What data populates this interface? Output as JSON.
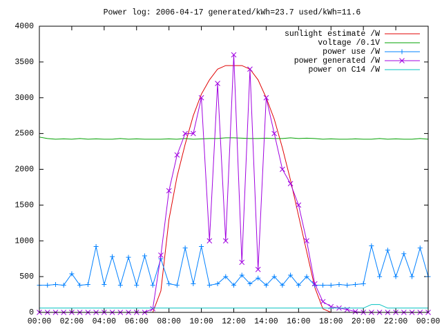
{
  "chart_data": {
    "type": "line",
    "title": "Power log: 2006-04-17 generated/kWh=23.7 used/kWh=11.6",
    "x": [
      0,
      0.5,
      1,
      1.5,
      2,
      2.5,
      3,
      3.5,
      4,
      4.5,
      5,
      5.5,
      6,
      6.5,
      7,
      7.5,
      8,
      8.5,
      9,
      9.5,
      10,
      10.5,
      11,
      11.5,
      12,
      12.5,
      13,
      13.5,
      14,
      14.5,
      15,
      15.5,
      16,
      16.5,
      17,
      17.5,
      18,
      18.5,
      19,
      19.5,
      20,
      20.5,
      21,
      21.5,
      22,
      22.5,
      23,
      23.5,
      24
    ],
    "xlim": [
      0,
      24
    ],
    "xticks": [
      {
        "value": 0,
        "label": "00:00"
      },
      {
        "value": 2,
        "label": "02:00"
      },
      {
        "value": 4,
        "label": "04:00"
      },
      {
        "value": 6,
        "label": "06:00"
      },
      {
        "value": 8,
        "label": "08:00"
      },
      {
        "value": 10,
        "label": "10:00"
      },
      {
        "value": 12,
        "label": "12:00"
      },
      {
        "value": 14,
        "label": "14:00"
      },
      {
        "value": 16,
        "label": "16:00"
      },
      {
        "value": 18,
        "label": "18:00"
      },
      {
        "value": 20,
        "label": "20:00"
      },
      {
        "value": 22,
        "label": "22:00"
      },
      {
        "value": 24,
        "label": "00:00"
      }
    ],
    "ylim": [
      0,
      4000
    ],
    "yticks": [
      0,
      500,
      1000,
      1500,
      2000,
      2500,
      3000,
      3500,
      4000
    ],
    "legend": "top-right",
    "series": [
      {
        "name": "sunlight estimate /W",
        "color": "#e00000",
        "marker": "none",
        "values": [
          0,
          0,
          0,
          0,
          0,
          0,
          0,
          0,
          0,
          0,
          0,
          0,
          0,
          0,
          0,
          300,
          1300,
          1900,
          2350,
          2750,
          3050,
          3250,
          3400,
          3450,
          3450,
          3450,
          3400,
          3250,
          3000,
          2700,
          2300,
          1850,
          1350,
          850,
          350,
          50,
          0,
          0,
          0,
          0,
          0,
          0,
          0,
          0,
          0,
          0,
          0,
          0,
          0
        ]
      },
      {
        "name": "voltage /0.1V",
        "color": "#00a000",
        "marker": "none",
        "values": [
          2450,
          2430,
          2420,
          2425,
          2420,
          2430,
          2420,
          2425,
          2420,
          2420,
          2430,
          2420,
          2425,
          2420,
          2420,
          2420,
          2425,
          2420,
          2430,
          2420,
          2425,
          2430,
          2430,
          2440,
          2440,
          2435,
          2430,
          2430,
          2435,
          2430,
          2430,
          2440,
          2430,
          2435,
          2430,
          2420,
          2425,
          2420,
          2420,
          2425,
          2420,
          2420,
          2430,
          2420,
          2425,
          2420,
          2420,
          2430,
          2420
        ]
      },
      {
        "name": "power use /W",
        "color": "#0080ff",
        "marker": "plus",
        "values": [
          380,
          380,
          390,
          380,
          540,
          380,
          390,
          920,
          390,
          780,
          380,
          770,
          380,
          790,
          380,
          750,
          400,
          380,
          900,
          400,
          920,
          380,
          400,
          500,
          380,
          520,
          400,
          480,
          380,
          500,
          380,
          520,
          380,
          500,
          380,
          380,
          380,
          390,
          380,
          390,
          400,
          930,
          500,
          870,
          500,
          820,
          500,
          900,
          500
        ]
      },
      {
        "name": "power generated /W",
        "color": "#a000e0",
        "marker": "cross",
        "values": [
          0,
          0,
          0,
          0,
          0,
          0,
          0,
          0,
          0,
          0,
          0,
          0,
          0,
          0,
          50,
          800,
          1700,
          2200,
          2500,
          2500,
          3000,
          1000,
          3200,
          1000,
          3600,
          700,
          3400,
          600,
          3000,
          2500,
          2000,
          1800,
          1500,
          1000,
          400,
          150,
          80,
          60,
          40,
          10,
          0,
          0,
          0,
          0,
          0,
          0,
          0,
          0,
          0
        ]
      },
      {
        "name": "power on C14 /W",
        "color": "#00c0c0",
        "marker": "none",
        "values": [
          60,
          60,
          60,
          60,
          60,
          60,
          60,
          60,
          60,
          60,
          60,
          60,
          60,
          60,
          60,
          60,
          60,
          60,
          60,
          60,
          60,
          60,
          60,
          60,
          60,
          60,
          60,
          60,
          60,
          60,
          60,
          60,
          60,
          60,
          60,
          60,
          60,
          60,
          60,
          60,
          60,
          110,
          110,
          60,
          60,
          60,
          60,
          60,
          60
        ]
      }
    ]
  }
}
